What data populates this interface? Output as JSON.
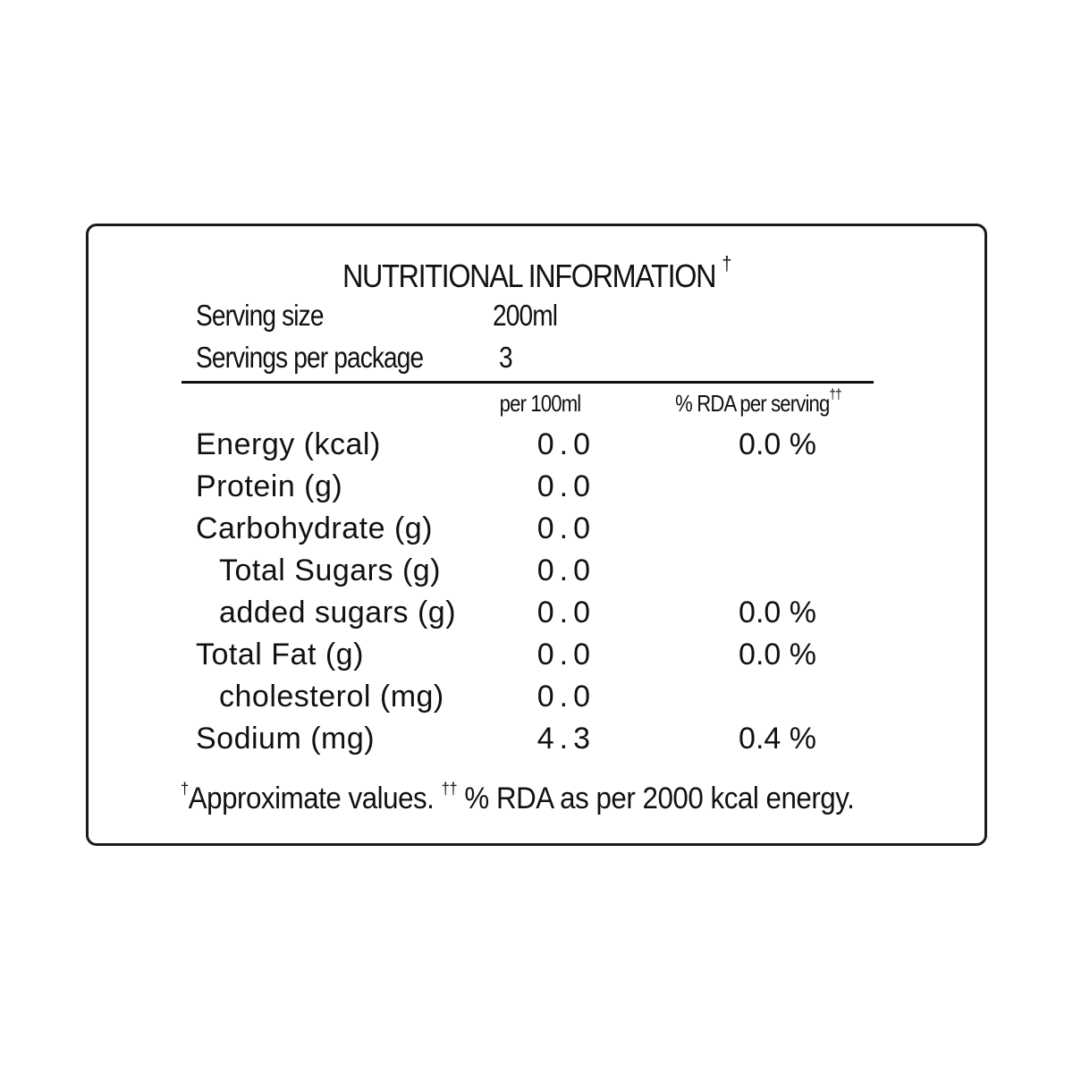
{
  "label": {
    "title": "NUTRITIONAL INFORMATION",
    "title_mark": "†",
    "serving_size_label": "Serving size",
    "serving_size_value": "200ml",
    "servings_per_package_label": "Servings per package",
    "servings_per_package_value": "3",
    "col_per100": "per 100ml",
    "col_rda": "% RDA per serving",
    "col_rda_mark": "††",
    "rows": [
      {
        "label": "Energy (kcal)",
        "value": "0.0",
        "rda": "0.0 %"
      },
      {
        "label": "Protein (g)",
        "value": "0.0",
        "rda": ""
      },
      {
        "label": "Carbohydrate (g)",
        "value": "0.0",
        "rda": ""
      },
      {
        "label": "Total Sugars (g)",
        "value": "0.0",
        "rda": ""
      },
      {
        "label": "added sugars (g)",
        "value": "0.0",
        "rda": "0.0 %"
      },
      {
        "label": "Total Fat (g)",
        "value": "0.0",
        "rda": "0.0 %"
      },
      {
        "label": "cholesterol (mg)",
        "value": "0.0",
        "rda": ""
      },
      {
        "label": "Sodium (mg)",
        "value": "4.3",
        "rda": "0.4 %"
      }
    ],
    "footnote_mark1": "†",
    "footnote_text1": "Approximate values. ",
    "footnote_mark2": "††",
    "footnote_text2": " % RDA as per 2000 kcal energy."
  }
}
